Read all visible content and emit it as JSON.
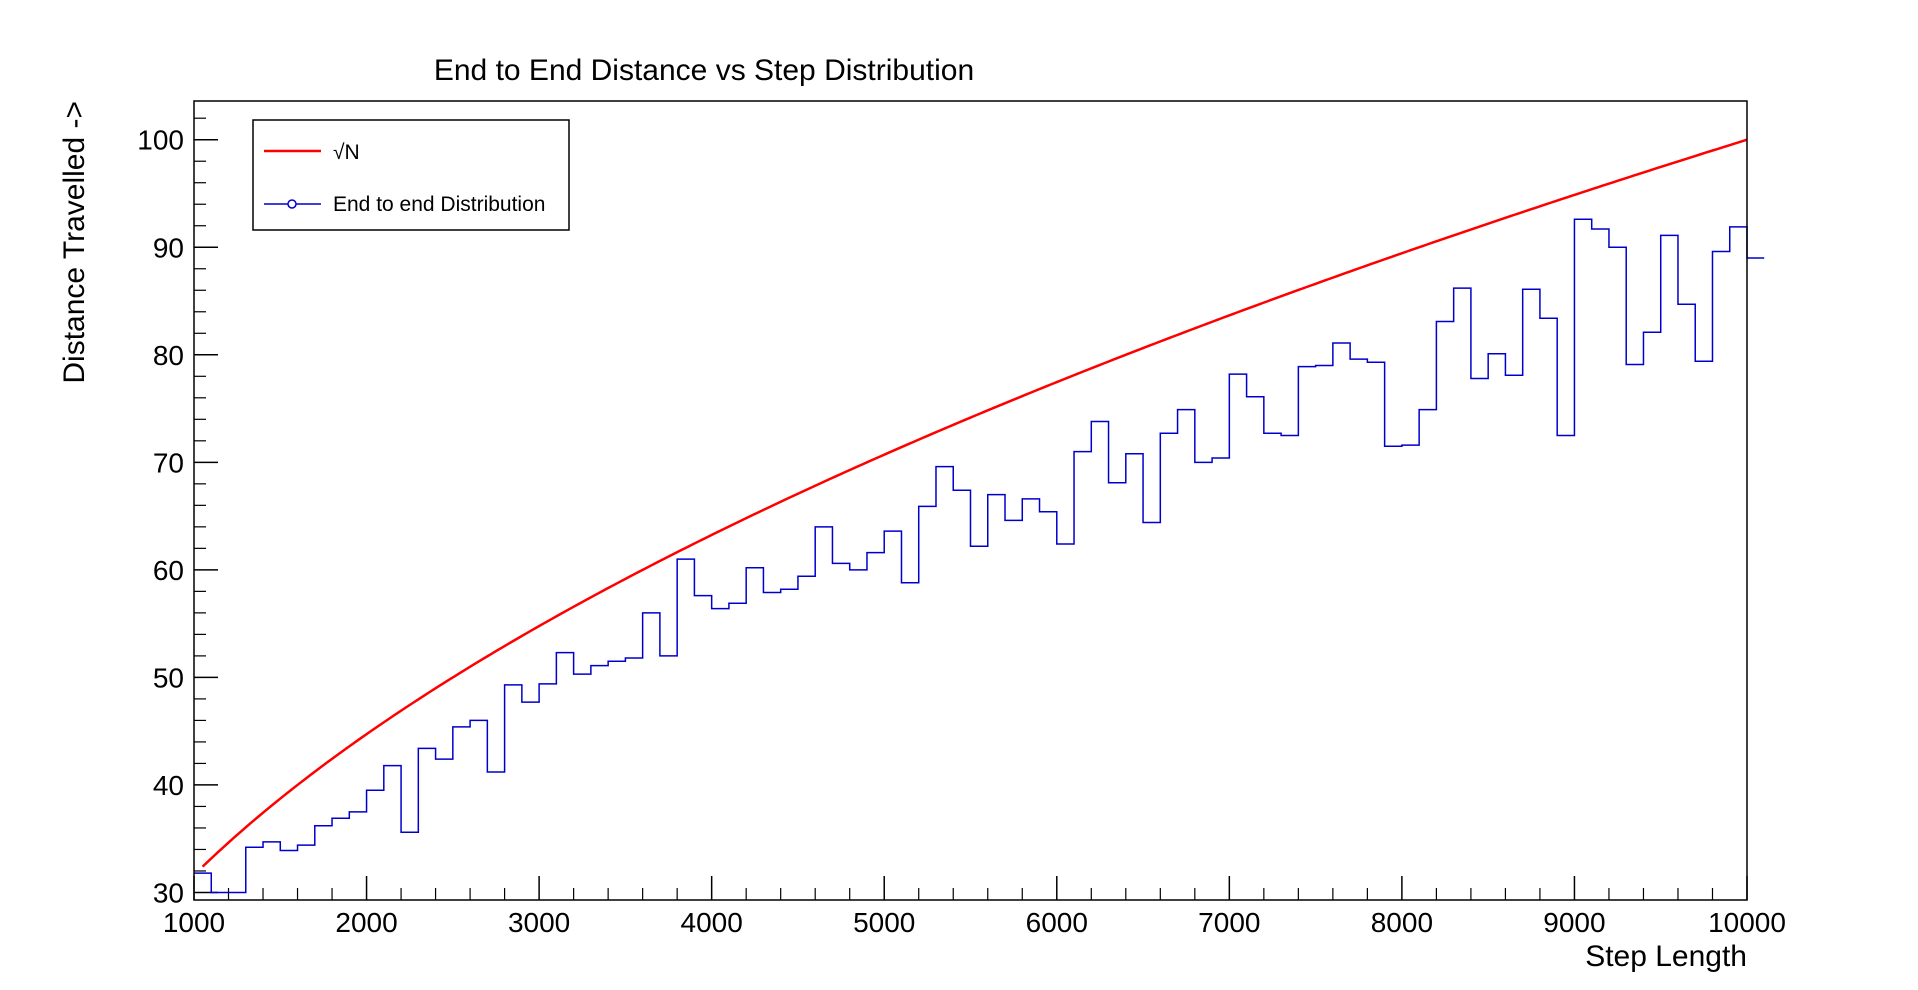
{
  "chart_data": {
    "type": "line",
    "title": "End to End Distance vs Step Distribution",
    "xlabel": "Step Length",
    "ylabel": "Distance Travelled ->",
    "xlim": [
      1000,
      10000
    ],
    "ylim": [
      29.3,
      103.6
    ],
    "xticks": [
      1000,
      2000,
      3000,
      4000,
      5000,
      6000,
      7000,
      8000,
      9000,
      10000
    ],
    "yticks": [
      30,
      40,
      50,
      60,
      70,
      80,
      90,
      100
    ],
    "grid": false,
    "legend_position": "top-left",
    "series": [
      {
        "name": "√N",
        "kind": "line",
        "color": "#ff0000",
        "function": "sqrt",
        "x_range": [
          1050,
          10000
        ]
      },
      {
        "name": "End to end Distribution",
        "kind": "histogram",
        "color": "#0000cc",
        "bin_width": 100,
        "x_start": 1000,
        "values": [
          31.8,
          30.0,
          30.0,
          34.2,
          34.7,
          33.9,
          34.4,
          36.2,
          36.9,
          37.5,
          39.5,
          41.8,
          35.6,
          43.4,
          42.4,
          45.4,
          46.0,
          41.2,
          49.3,
          47.7,
          49.4,
          52.3,
          50.3,
          51.1,
          51.5,
          51.8,
          56.0,
          52.0,
          61.0,
          57.6,
          56.4,
          56.9,
          60.2,
          57.9,
          58.2,
          59.4,
          64.0,
          60.6,
          60.0,
          61.6,
          63.6,
          58.8,
          65.9,
          69.6,
          67.4,
          62.2,
          67.0,
          64.6,
          66.6,
          65.4,
          62.4,
          71.0,
          73.8,
          68.1,
          70.8,
          64.4,
          72.7,
          74.9,
          70.0,
          70.4,
          78.2,
          76.1,
          72.7,
          72.5,
          78.9,
          79.0,
          81.1,
          79.6,
          79.3,
          71.5,
          71.6,
          74.9,
          83.1,
          86.2,
          77.8,
          80.1,
          78.1,
          86.1,
          83.4,
          72.5,
          92.6,
          91.7,
          90.0,
          79.1,
          82.1,
          91.1,
          84.7,
          79.4,
          89.6,
          91.9,
          89.0
        ]
      }
    ]
  }
}
